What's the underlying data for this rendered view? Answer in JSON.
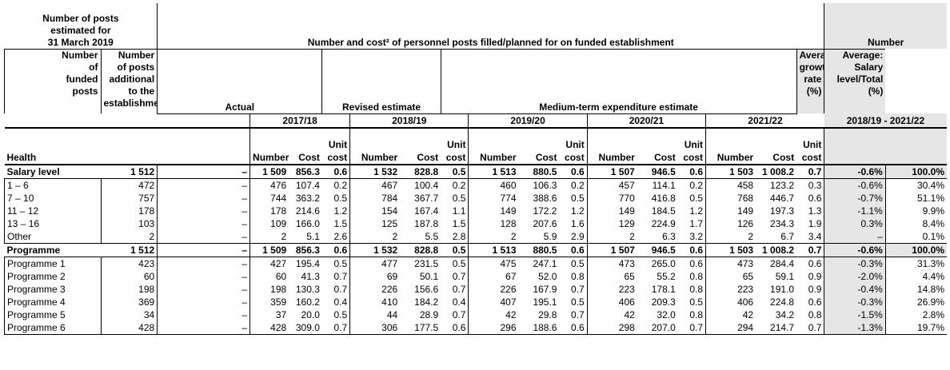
{
  "header": {
    "estimated_title": [
      "Number of posts",
      "estimated for",
      "31 March 2019"
    ],
    "main_title": "Number and cost² of personnel posts filled/planned for on funded establishment",
    "number_title": "Number",
    "funded_posts": [
      "Number",
      "of",
      "funded",
      "posts"
    ],
    "additional_posts": [
      "Number",
      "of posts",
      "additional",
      "to the",
      "establishment"
    ],
    "actual": "Actual",
    "revised": "Revised estimate",
    "mtee": "Medium-term expenditure estimate",
    "avg_growth": [
      "Average",
      "growth",
      "rate",
      "(%)"
    ],
    "avg_salary": [
      "Average:",
      "Salary",
      "level/Total",
      "(%)"
    ],
    "years": [
      "2017/18",
      "2018/19",
      "2019/20",
      "2020/21",
      "2021/22"
    ],
    "period": "2018/19 - 2021/22",
    "unit": "Unit",
    "number": "Number",
    "cost": "Cost",
    "cost_word": "cost",
    "dept": "Health"
  },
  "rows": [
    {
      "label": "Salary level",
      "bold": true,
      "funded": "1 512",
      "add": "–",
      "v": [
        "1 509",
        "856.3",
        "0.6",
        "1 532",
        "828.8",
        "0.5",
        "1 513",
        "880.5",
        "0.6",
        "1 507",
        "946.5",
        "0.6",
        "1 503",
        "1 008.2",
        "0.7"
      ],
      "g": "-0.6%",
      "s": "100.0%"
    },
    {
      "label": "1 – 6",
      "funded": "472",
      "add": "–",
      "v": [
        "476",
        "107.4",
        "0.2",
        "467",
        "100.4",
        "0.2",
        "460",
        "106.3",
        "0.2",
        "457",
        "114.1",
        "0.2",
        "458",
        "123.2",
        "0.3"
      ],
      "g": "-0.6%",
      "s": "30.4%"
    },
    {
      "label": "7 – 10",
      "funded": "757",
      "add": "–",
      "v": [
        "744",
        "363.2",
        "0.5",
        "784",
        "367.7",
        "0.5",
        "774",
        "388.6",
        "0.5",
        "770",
        "416.8",
        "0.5",
        "768",
        "446.7",
        "0.6"
      ],
      "g": "-0.7%",
      "s": "51.1%"
    },
    {
      "label": "11 – 12",
      "funded": "178",
      "add": "–",
      "v": [
        "178",
        "214.6",
        "1.2",
        "154",
        "167.4",
        "1.1",
        "149",
        "172.2",
        "1.2",
        "149",
        "184.5",
        "1.2",
        "149",
        "197.3",
        "1.3"
      ],
      "g": "-1.1%",
      "s": "9.9%"
    },
    {
      "label": "13 – 16",
      "funded": "103",
      "add": "–",
      "v": [
        "109",
        "166.0",
        "1.5",
        "125",
        "187.8",
        "1.5",
        "128",
        "207.6",
        "1.6",
        "129",
        "224.9",
        "1.7",
        "126",
        "234.3",
        "1.9"
      ],
      "g": "0.3%",
      "s": "8.4%"
    },
    {
      "label": "Other",
      "funded": "2",
      "add": "–",
      "v": [
        "2",
        "5.1",
        "2.6",
        "2",
        "5.5",
        "2.8",
        "2",
        "5.9",
        "2.9",
        "2",
        "6.3",
        "3.2",
        "2",
        "6.7",
        "3.4"
      ],
      "g": "–",
      "s": "0.1%"
    },
    {
      "label": "Programme",
      "bold": true,
      "funded": "1 512",
      "add": "–",
      "v": [
        "1 509",
        "856.3",
        "0.6",
        "1 532",
        "828.8",
        "0.5",
        "1 513",
        "880.5",
        "0.6",
        "1 507",
        "946.5",
        "0.6",
        "1 503",
        "1 008.2",
        "0.7"
      ],
      "g": "-0.6%",
      "s": "100.0%"
    },
    {
      "label": "Programme 1",
      "funded": "423",
      "add": "–",
      "v": [
        "427",
        "195.4",
        "0.5",
        "477",
        "231.5",
        "0.5",
        "475",
        "247.1",
        "0.5",
        "473",
        "265.0",
        "0.6",
        "473",
        "284.4",
        "0.6"
      ],
      "g": "-0.3%",
      "s": "31.3%"
    },
    {
      "label": "Programme 2",
      "funded": "60",
      "add": "–",
      "v": [
        "60",
        "41.3",
        "0.7",
        "69",
        "50.1",
        "0.7",
        "67",
        "52.0",
        "0.8",
        "65",
        "55.2",
        "0.8",
        "65",
        "59.1",
        "0.9"
      ],
      "g": "-2.0%",
      "s": "4.4%"
    },
    {
      "label": "Programme 3",
      "funded": "198",
      "add": "–",
      "v": [
        "198",
        "130.3",
        "0.7",
        "226",
        "156.6",
        "0.7",
        "226",
        "167.9",
        "0.7",
        "223",
        "178.1",
        "0.8",
        "223",
        "191.0",
        "0.9"
      ],
      "g": "-0.4%",
      "s": "14.8%"
    },
    {
      "label": "Programme 4",
      "funded": "369",
      "add": "–",
      "v": [
        "359",
        "160.2",
        "0.4",
        "410",
        "184.2",
        "0.4",
        "407",
        "195.1",
        "0.5",
        "406",
        "209.3",
        "0.5",
        "406",
        "224.8",
        "0.6"
      ],
      "g": "-0.3%",
      "s": "26.9%"
    },
    {
      "label": "Programme 5",
      "funded": "34",
      "add": "–",
      "v": [
        "37",
        "20.0",
        "0.5",
        "44",
        "28.9",
        "0.7",
        "42",
        "29.8",
        "0.7",
        "42",
        "32.0",
        "0.8",
        "42",
        "34.2",
        "0.8"
      ],
      "g": "-1.5%",
      "s": "2.8%"
    },
    {
      "label": "Programme 6",
      "funded": "428",
      "add": "–",
      "v": [
        "428",
        "309.0",
        "0.7",
        "306",
        "177.5",
        "0.6",
        "296",
        "188.6",
        "0.6",
        "298",
        "207.0",
        "0.7",
        "294",
        "214.7",
        "0.7"
      ],
      "g": "-1.3%",
      "s": "19.7%"
    }
  ]
}
